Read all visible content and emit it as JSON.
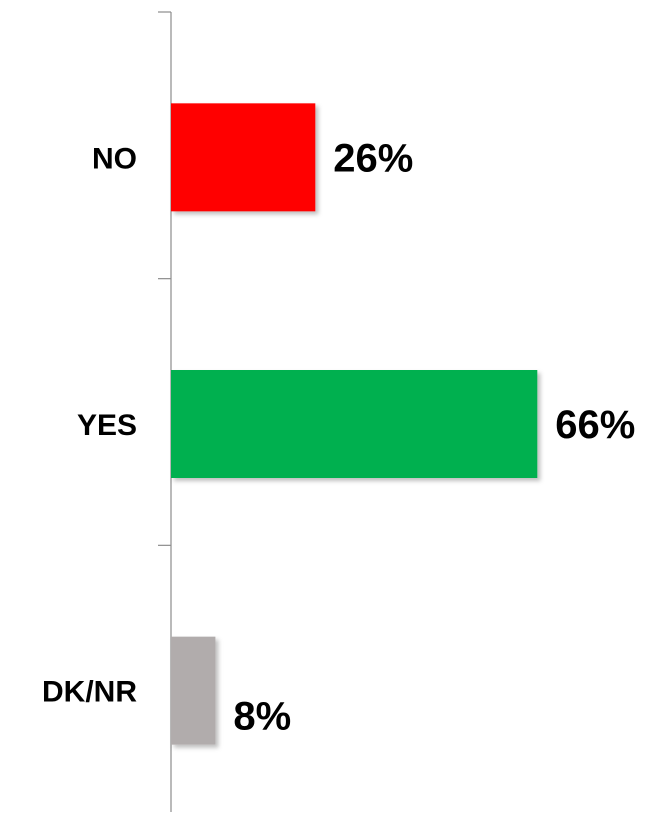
{
  "chart_data": {
    "type": "bar",
    "orientation": "horizontal",
    "categories": [
      "NO",
      "YES",
      "DK/NR"
    ],
    "values": [
      26,
      66,
      8
    ],
    "value_labels": [
      "26%",
      "66%",
      "8%"
    ],
    "colors": [
      "#ff0000",
      "#00b050",
      "#b1acac"
    ],
    "title": "",
    "xlabel": "",
    "ylabel": "",
    "xlim": [
      0,
      100
    ],
    "grid": false,
    "legend": "none"
  }
}
